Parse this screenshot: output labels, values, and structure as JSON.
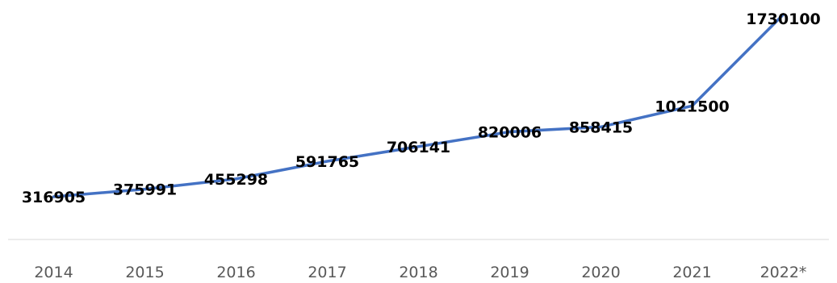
{
  "chart_data": {
    "type": "line",
    "title": "",
    "xlabel": "",
    "ylabel": "",
    "categories": [
      "2014",
      "2015",
      "2016",
      "2017",
      "2018",
      "2019",
      "2020",
      "2021",
      "2022*"
    ],
    "series": [
      {
        "values": [
          316905,
          375991,
          455298,
          591765,
          706141,
          820006,
          858415,
          1021500,
          1730100
        ],
        "data_labels": [
          "316905",
          "375991",
          "455298",
          "591765",
          "706141",
          "820006",
          "858415",
          "1021500",
          "1730100"
        ],
        "color": "#4472C4"
      }
    ],
    "grid": false,
    "legend": "none",
    "axis_color": "#D9D9D9",
    "tick_label_color": "#595959"
  }
}
